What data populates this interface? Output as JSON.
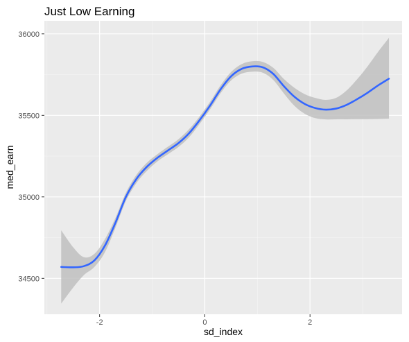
{
  "chart_data": {
    "type": "line",
    "title": "Just Low Earning",
    "xlabel": "sd_index",
    "ylabel": "med_earn",
    "xlim": [
      -3.05,
      3.75
    ],
    "ylim": [
      34280,
      36080
    ],
    "x_ticks": [
      -2,
      0,
      2
    ],
    "y_ticks": [
      34500,
      35000,
      35500,
      36000
    ],
    "x_minor_ticks": [
      -3,
      -1,
      1,
      3
    ],
    "y_minor_ticks": [
      34750,
      35250,
      35750
    ],
    "grid": true,
    "legend": "none",
    "colors": {
      "panel_bg": "#ebebeb",
      "grid": "#ffffff",
      "line": "#3366ff",
      "ribbon": "#bfbfbf"
    },
    "series": [
      {
        "x": [
          -2.73,
          -2.5,
          -2.3,
          -2.1,
          -1.9,
          -1.7,
          -1.5,
          -1.3,
          -1.1,
          -0.9,
          -0.7,
          -0.5,
          -0.3,
          -0.1,
          0.1,
          0.3,
          0.5,
          0.7,
          0.9,
          1.1,
          1.3,
          1.5,
          1.7,
          1.9,
          2.1,
          2.3,
          2.5,
          2.7,
          2.9,
          3.1,
          3.3,
          3.5
        ],
        "y": [
          34570,
          34568,
          34575,
          34610,
          34700,
          34840,
          35000,
          35110,
          35185,
          35240,
          35285,
          35330,
          35390,
          35470,
          35560,
          35660,
          35740,
          35785,
          35800,
          35795,
          35755,
          35680,
          35615,
          35570,
          35545,
          35535,
          35542,
          35565,
          35600,
          35640,
          35685,
          35725
        ],
        "ymin": [
          34345,
          34445,
          34520,
          34570,
          34660,
          34810,
          34975,
          35085,
          35160,
          35218,
          35262,
          35306,
          35365,
          35447,
          35537,
          35636,
          35714,
          35756,
          35768,
          35762,
          35718,
          35636,
          35560,
          35510,
          35483,
          35475,
          35476,
          35476,
          35477,
          35477,
          35478,
          35480
        ],
        "ymax": [
          34795,
          34690,
          34630,
          34650,
          34740,
          34870,
          35025,
          35135,
          35210,
          35262,
          35308,
          35354,
          35415,
          35493,
          35583,
          35684,
          35766,
          35814,
          35832,
          35828,
          35792,
          35724,
          35670,
          35630,
          35607,
          35595,
          35608,
          35654,
          35723,
          35803,
          35892,
          35975
        ]
      }
    ]
  }
}
